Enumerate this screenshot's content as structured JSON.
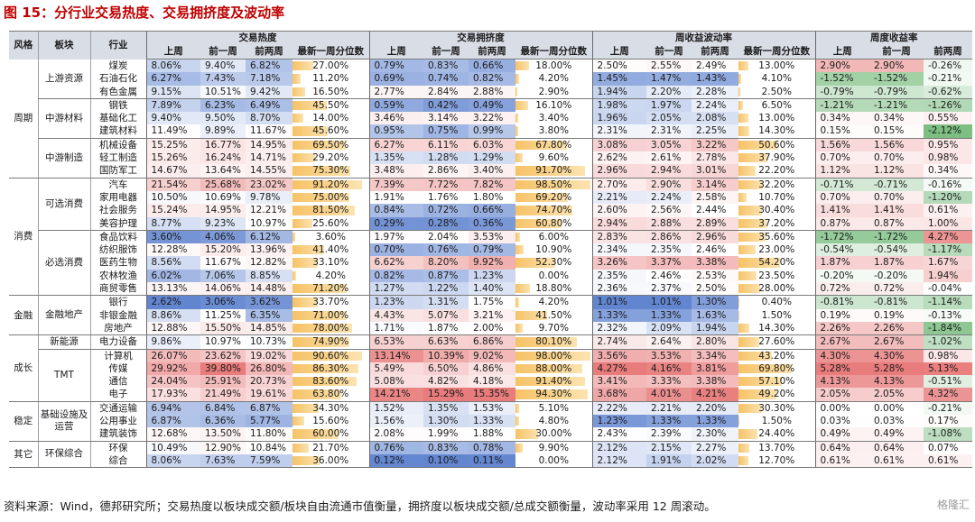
{
  "title": "图 15：分行业交易热度、交易拥挤度及波动率",
  "header": {
    "col_group": "风格",
    "col_sector": "板块",
    "col_industry": "行业",
    "groups": [
      "交易热度",
      "交易拥挤度",
      "周收益波动率",
      "周度收益率"
    ],
    "subs": [
      "上周",
      "前一周",
      "前两周",
      "最新一周分位数"
    ],
    "subs_ret": [
      "上周",
      "前一周",
      "前两周"
    ]
  },
  "colors": {
    "red": "#e35b5b",
    "blue": "#3f6fc8",
    "bar": "#f6c266",
    "green": "#5ab068"
  },
  "rows": [
    {
      "style": "周期",
      "sector": "上游资源",
      "industry": "煤炭",
      "h": [
        "8.06%",
        "9.40%",
        "6.82%",
        "27.00%"
      ],
      "c": [
        "0.79%",
        "0.83%",
        "0.66%",
        "18.00%"
      ],
      "v": [
        "2.50%",
        "2.55%",
        "2.49%",
        "13.00%"
      ],
      "r": [
        "2.90%",
        "2.90%",
        "-0.26%"
      ]
    },
    {
      "style": "周期",
      "sector": "上游资源",
      "industry": "石油石化",
      "h": [
        "6.27%",
        "7.43%",
        "7.18%",
        "11.20%"
      ],
      "c": [
        "0.69%",
        "0.74%",
        "0.82%",
        "4.20%"
      ],
      "v": [
        "1.45%",
        "1.47%",
        "1.43%",
        "4.10%"
      ],
      "r": [
        "-1.52%",
        "-1.52%",
        "-0.21%"
      ]
    },
    {
      "style": "周期",
      "sector": "上游资源",
      "industry": "有色金属",
      "h": [
        "9.15%",
        "10.51%",
        "9.42%",
        "16.50%"
      ],
      "c": [
        "2.77%",
        "2.84%",
        "2.88%",
        "2.90%"
      ],
      "v": [
        "1.94%",
        "2.20%",
        "2.28%",
        "2.50%"
      ],
      "r": [
        "-0.79%",
        "-0.79%",
        "-0.62%"
      ]
    },
    {
      "style": "周期",
      "sector": "中游材料",
      "industry": "钢铁",
      "h": [
        "7.89%",
        "6.23%",
        "6.49%",
        "45.50%"
      ],
      "c": [
        "0.59%",
        "0.42%",
        "0.49%",
        "16.10%"
      ],
      "v": [
        "1.98%",
        "1.97%",
        "2.24%",
        "6.50%"
      ],
      "r": [
        "-1.21%",
        "-1.21%",
        "-1.26%"
      ]
    },
    {
      "style": "周期",
      "sector": "中游材料",
      "industry": "基础化工",
      "h": [
        "9.40%",
        "9.50%",
        "8.70%",
        "14.00%"
      ],
      "c": [
        "3.46%",
        "3.14%",
        "3.22%",
        "3.40%"
      ],
      "v": [
        "1.96%",
        "2.05%",
        "2.08%",
        "13.00%"
      ],
      "r": [
        "0.34%",
        "0.34%",
        "0.55%"
      ]
    },
    {
      "style": "周期",
      "sector": "中游材料",
      "industry": "建筑材料",
      "h": [
        "11.49%",
        "9.89%",
        "11.67%",
        "45.60%"
      ],
      "c": [
        "0.95%",
        "0.75%",
        "0.99%",
        "3.80%"
      ],
      "v": [
        "2.31%",
        "2.31%",
        "2.25%",
        "14.30%"
      ],
      "r": [
        "0.15%",
        "0.15%",
        "-2.12%"
      ]
    },
    {
      "style": "周期",
      "sector": "中游制造",
      "industry": "机械设备",
      "h": [
        "15.25%",
        "16.77%",
        "14.95%",
        "69.50%"
      ],
      "c": [
        "6.27%",
        "6.11%",
        "6.03%",
        "67.80%"
      ],
      "v": [
        "3.08%",
        "3.05%",
        "3.22%",
        "50.60%"
      ],
      "r": [
        "1.56%",
        "1.56%",
        "0.95%"
      ]
    },
    {
      "style": "周期",
      "sector": "中游制造",
      "industry": "轻工制造",
      "h": [
        "15.26%",
        "16.24%",
        "14.71%",
        "29.20%"
      ],
      "c": [
        "1.35%",
        "1.28%",
        "1.29%",
        "9.60%"
      ],
      "v": [
        "2.62%",
        "2.61%",
        "2.78%",
        "37.90%"
      ],
      "r": [
        "0.70%",
        "0.70%",
        "0.98%"
      ]
    },
    {
      "style": "周期",
      "sector": "中游制造",
      "industry": "国防军工",
      "h": [
        "14.67%",
        "13.64%",
        "14.55%",
        "75.30%"
      ],
      "c": [
        "3.48%",
        "2.86%",
        "3.40%",
        "91.70%"
      ],
      "v": [
        "2.96%",
        "2.94%",
        "3.01%",
        "22.20%"
      ],
      "r": [
        "1.12%",
        "1.12%",
        "0.34%"
      ]
    },
    {
      "style": "消费",
      "sector": "可选消费",
      "industry": "汽车",
      "h": [
        "21.54%",
        "25.68%",
        "23.02%",
        "91.20%"
      ],
      "c": [
        "7.39%",
        "7.72%",
        "7.82%",
        "98.50%"
      ],
      "v": [
        "2.70%",
        "2.90%",
        "3.14%",
        "32.20%"
      ],
      "r": [
        "-0.71%",
        "-0.71%",
        "-0.16%"
      ]
    },
    {
      "style": "消费",
      "sector": "可选消费",
      "industry": "家用电器",
      "h": [
        "10.50%",
        "10.69%",
        "9.78%",
        "75.00%"
      ],
      "c": [
        "1.91%",
        "1.76%",
        "1.80%",
        "69.20%"
      ],
      "v": [
        "2.21%",
        "2.24%",
        "2.58%",
        "10.70%"
      ],
      "r": [
        "0.70%",
        "0.70%",
        "-1.20%"
      ]
    },
    {
      "style": "消费",
      "sector": "可选消费",
      "industry": "社会服务",
      "h": [
        "15.24%",
        "14.95%",
        "12.21%",
        "81.50%"
      ],
      "c": [
        "0.84%",
        "0.72%",
        "0.66%",
        "74.70%"
      ],
      "v": [
        "2.60%",
        "2.56%",
        "2.44%",
        "30.40%"
      ],
      "r": [
        "1.41%",
        "1.41%",
        "0.61%"
      ]
    },
    {
      "style": "消费",
      "sector": "可选消费",
      "industry": "美容护理",
      "h": [
        "8.77%",
        "9.23%",
        "10.97%",
        "25.60%"
      ],
      "c": [
        "0.29%",
        "0.28%",
        "0.36%",
        "60.80%"
      ],
      "v": [
        "2.94%",
        "2.88%",
        "2.89%",
        "37.20%"
      ],
      "r": [
        "0.87%",
        "0.87%",
        "1.00%"
      ]
    },
    {
      "style": "消费",
      "sector": "必选消费",
      "industry": "食品饮料",
      "h": [
        "3.60%",
        "4.06%",
        "6.12%",
        "3.60%"
      ],
      "c": [
        "1.97%",
        "2.04%",
        "3.53%",
        "6.00%"
      ],
      "v": [
        "2.83%",
        "2.86%",
        "2.96%",
        "35.60%"
      ],
      "r": [
        "-1.72%",
        "-1.72%",
        "4.27%"
      ]
    },
    {
      "style": "消费",
      "sector": "必选消费",
      "industry": "纺织服饰",
      "h": [
        "12.28%",
        "15.20%",
        "13.96%",
        "41.40%"
      ],
      "c": [
        "0.70%",
        "0.76%",
        "0.79%",
        "10.90%"
      ],
      "v": [
        "2.34%",
        "2.35%",
        "2.46%",
        "23.00%"
      ],
      "r": [
        "-0.54%",
        "-0.54%",
        "-1.17%"
      ]
    },
    {
      "style": "消费",
      "sector": "必选消费",
      "industry": "医药生物",
      "h": [
        "8.56%",
        "11.67%",
        "12.82%",
        "33.10%"
      ],
      "c": [
        "6.62%",
        "8.20%",
        "9.92%",
        "52.30%"
      ],
      "v": [
        "3.26%",
        "3.37%",
        "3.38%",
        "54.20%"
      ],
      "r": [
        "1.87%",
        "1.87%",
        "1.67%"
      ]
    },
    {
      "style": "消费",
      "sector": "必选消费",
      "industry": "农林牧渔",
      "h": [
        "6.02%",
        "7.06%",
        "8.85%",
        "4.20%"
      ],
      "c": [
        "0.82%",
        "0.87%",
        "1.23%",
        "0.00%"
      ],
      "v": [
        "2.35%",
        "2.46%",
        "2.53%",
        "23.50%"
      ],
      "r": [
        "-0.20%",
        "-0.20%",
        "1.94%"
      ]
    },
    {
      "style": "消费",
      "sector": "必选消费",
      "industry": "商贸零售",
      "h": [
        "13.13%",
        "14.06%",
        "14.48%",
        "71.20%"
      ],
      "c": [
        "1.27%",
        "1.22%",
        "1.40%",
        "18.80%"
      ],
      "v": [
        "2.36%",
        "2.37%",
        "2.50%",
        "28.00%"
      ],
      "r": [
        "0.72%",
        "0.72%",
        "-0.04%"
      ]
    },
    {
      "style": "金融",
      "sector": "金融地产",
      "industry": "银行",
      "h": [
        "2.62%",
        "3.06%",
        "3.62%",
        "33.70%"
      ],
      "c": [
        "1.23%",
        "1.31%",
        "1.75%",
        "4.20%"
      ],
      "v": [
        "1.01%",
        "1.01%",
        "1.30%",
        "0.40%"
      ],
      "r": [
        "-0.81%",
        "-0.81%",
        "-1.14%"
      ]
    },
    {
      "style": "金融",
      "sector": "金融地产",
      "industry": "非银金融",
      "h": [
        "8.86%",
        "11.25%",
        "6.35%",
        "71.00%"
      ],
      "c": [
        "4.43%",
        "5.07%",
        "3.21%",
        "41.50%"
      ],
      "v": [
        "1.33%",
        "1.33%",
        "1.63%",
        "1.50%"
      ],
      "r": [
        "0.19%",
        "0.19%",
        "-0.13%"
      ]
    },
    {
      "style": "金融",
      "sector": "金融地产",
      "industry": "房地产",
      "h": [
        "12.88%",
        "15.50%",
        "14.85%",
        "78.00%"
      ],
      "c": [
        "1.71%",
        "1.87%",
        "2.00%",
        "9.70%"
      ],
      "v": [
        "2.32%",
        "2.09%",
        "1.94%",
        "14.30%"
      ],
      "r": [
        "2.26%",
        "2.26%",
        "-1.84%"
      ]
    },
    {
      "style": "成长",
      "sector": "新能源",
      "industry": "电力设备",
      "h": [
        "9.86%",
        "10.97%",
        "10.73%",
        "74.90%"
      ],
      "c": [
        "6.53%",
        "6.63%",
        "6.86%",
        "80.10%"
      ],
      "v": [
        "2.74%",
        "2.64%",
        "2.80%",
        "27.60%"
      ],
      "r": [
        "2.67%",
        "2.67%",
        "-1.02%"
      ]
    },
    {
      "style": "成长",
      "sector": "TMT",
      "industry": "计算机",
      "h": [
        "26.07%",
        "23.62%",
        "19.02%",
        "90.60%"
      ],
      "c": [
        "13.14%",
        "10.39%",
        "9.02%",
        "98.00%"
      ],
      "v": [
        "3.56%",
        "3.53%",
        "3.34%",
        "43.20%"
      ],
      "r": [
        "4.30%",
        "4.30%",
        "0.98%"
      ]
    },
    {
      "style": "成长",
      "sector": "TMT",
      "industry": "传媒",
      "h": [
        "29.92%",
        "39.80%",
        "26.80%",
        "86.30%"
      ],
      "c": [
        "5.49%",
        "6.50%",
        "4.86%",
        "88.00%"
      ],
      "v": [
        "4.27%",
        "4.16%",
        "3.81%",
        "69.80%"
      ],
      "r": [
        "5.28%",
        "5.28%",
        "5.13%"
      ]
    },
    {
      "style": "成长",
      "sector": "TMT",
      "industry": "通信",
      "h": [
        "24.04%",
        "25.91%",
        "20.73%",
        "83.60%"
      ],
      "c": [
        "5.08%",
        "4.82%",
        "4.18%",
        "91.40%"
      ],
      "v": [
        "3.41%",
        "3.33%",
        "3.38%",
        "57.10%"
      ],
      "r": [
        "4.13%",
        "4.13%",
        "-0.51%"
      ]
    },
    {
      "style": "成长",
      "sector": "TMT",
      "industry": "电子",
      "h": [
        "17.93%",
        "21.49%",
        "19.61%",
        "63.80%"
      ],
      "c": [
        "14.21%",
        "15.29%",
        "15.35%",
        "94.30%"
      ],
      "v": [
        "3.68%",
        "4.01%",
        "4.21%",
        "49.20%"
      ],
      "r": [
        "2.05%",
        "2.05%",
        "4.32%"
      ]
    },
    {
      "style": "稳定",
      "sector": "基础设施及运营",
      "industry": "交通运输",
      "h": [
        "6.94%",
        "6.84%",
        "6.87%",
        "34.30%"
      ],
      "c": [
        "1.52%",
        "1.35%",
        "1.53%",
        "5.10%"
      ],
      "v": [
        "2.22%",
        "2.21%",
        "2.20%",
        "30.30%"
      ],
      "r": [
        "0.00%",
        "0.00%",
        "-0.21%"
      ]
    },
    {
      "style": "稳定",
      "sector": "基础设施及运营",
      "industry": "公用事业",
      "h": [
        "6.87%",
        "6.36%",
        "5.77%",
        "15.60%"
      ],
      "c": [
        "1.56%",
        "1.30%",
        "1.33%",
        "4.80%"
      ],
      "v": [
        "1.23%",
        "1.33%",
        "1.33%",
        "1.50%"
      ],
      "r": [
        "0.03%",
        "0.03%",
        "0.17%"
      ]
    },
    {
      "style": "稳定",
      "sector": "基础设施及运营",
      "industry": "建筑装饰",
      "h": [
        "12.68%",
        "13.50%",
        "11.80%",
        "60.00%"
      ],
      "c": [
        "2.08%",
        "1.99%",
        "1.88%",
        "30.00%"
      ],
      "v": [
        "2.43%",
        "2.39%",
        "2.30%",
        "24.40%"
      ],
      "r": [
        "0.49%",
        "0.49%",
        "-1.08%"
      ]
    },
    {
      "style": "其它",
      "sector": "环保综合",
      "industry": "环保",
      "h": [
        "10.49%",
        "12.90%",
        "10.84%",
        "21.70%"
      ],
      "c": [
        "0.76%",
        "0.83%",
        "0.78%",
        "9.90%"
      ],
      "v": [
        "2.12%",
        "2.15%",
        "2.27%",
        "13.70%"
      ],
      "r": [
        "0.64%",
        "0.64%",
        "0.07%"
      ]
    },
    {
      "style": "其它",
      "sector": "环保综合",
      "industry": "综合",
      "h": [
        "8.06%",
        "7.63%",
        "7.59%",
        "36.00%"
      ],
      "c": [
        "0.12%",
        "0.10%",
        "0.11%",
        "0.00%"
      ],
      "v": [
        "2.12%",
        "1.91%",
        "2.02%",
        "12.70%"
      ],
      "r": [
        "0.61%",
        "0.61%",
        "0.61%"
      ]
    }
  ],
  "footer": "资料来源：Wind，德邦研究所；交易热度以板块成交额/板块自由流通市值衡量，拥挤度以板块成交额/总成交额衡量，波动率采用 12 周滚动。",
  "watermark": "格隆汇"
}
